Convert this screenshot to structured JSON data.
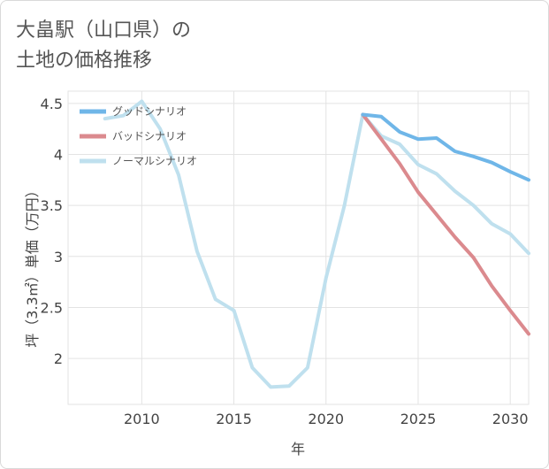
{
  "title_line1": "大畠駅（山口県）の",
  "title_line2": "土地の価格推移",
  "chart_data": {
    "type": "line",
    "xlabel": "年",
    "ylabel": "坪（3.3㎡）単価（万円）",
    "xlim": [
      2006,
      2031
    ],
    "ylim": [
      1.55,
      4.62
    ],
    "x_ticks": [
      2010,
      2015,
      2020,
      2025,
      2030
    ],
    "x_tick_labels": [
      "2010",
      "2015",
      "2020",
      "2025",
      "2030"
    ],
    "y_ticks": [
      2,
      2.5,
      3,
      3.5,
      4,
      4.5
    ],
    "y_tick_labels": [
      "2",
      "2.5",
      "3",
      "3.5",
      "4",
      "4.5"
    ],
    "legend_position": "top-left",
    "series": [
      {
        "name": "グッドシナリオ",
        "color": "#6fb6e8",
        "x": [
          2022,
          2023,
          2024,
          2025,
          2026,
          2027,
          2028,
          2029,
          2030,
          2031
        ],
        "values": [
          4.39,
          4.37,
          4.22,
          4.15,
          4.16,
          4.03,
          3.98,
          3.92,
          3.83,
          3.75
        ]
      },
      {
        "name": "バッドシナリオ",
        "color": "#db8a8e",
        "x": [
          2022,
          2023,
          2024,
          2025,
          2026,
          2027,
          2028,
          2029,
          2030,
          2031
        ],
        "values": [
          4.39,
          4.15,
          3.91,
          3.63,
          3.41,
          3.19,
          2.99,
          2.71,
          2.47,
          2.24
        ]
      },
      {
        "name": "ノーマルシナリオ",
        "color": "#bfe0ee",
        "x": [
          2008,
          2009,
          2010,
          2011,
          2012,
          2013,
          2014,
          2015,
          2016,
          2017,
          2018,
          2019,
          2020,
          2021,
          2022,
          2023,
          2024,
          2025,
          2026,
          2027,
          2028,
          2029,
          2030,
          2031
        ],
        "values": [
          4.35,
          4.38,
          4.52,
          4.25,
          3.8,
          3.05,
          2.58,
          2.47,
          1.91,
          1.72,
          1.73,
          1.91,
          2.79,
          3.5,
          4.39,
          4.18,
          4.1,
          3.9,
          3.81,
          3.64,
          3.5,
          3.32,
          3.22,
          3.03
        ]
      }
    ]
  }
}
